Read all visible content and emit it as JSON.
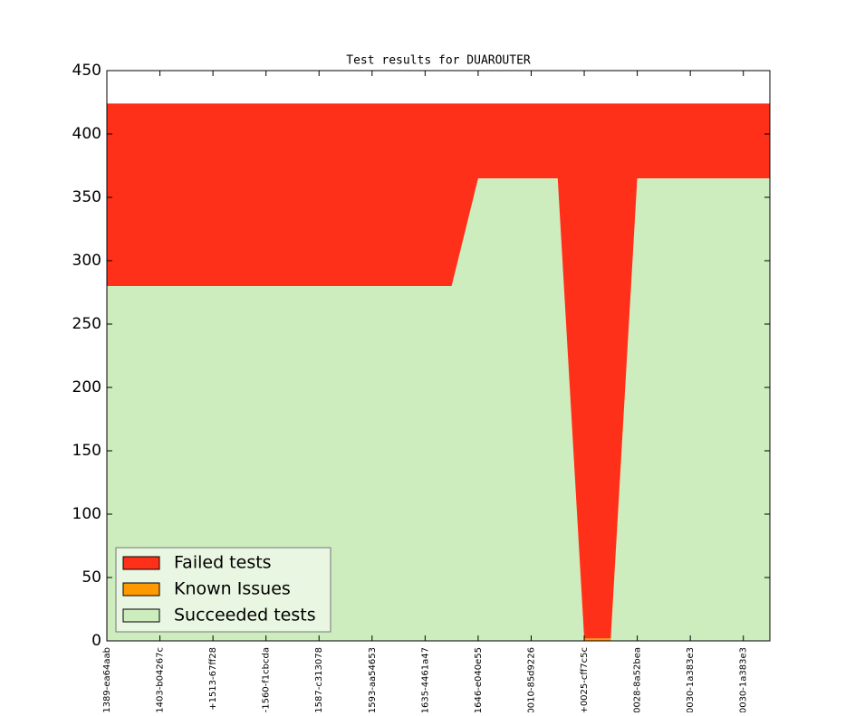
{
  "chart_data": {
    "type": "stacked_area",
    "title": "Test results for DUAROUTER",
    "categories": [
      "1389-ea64aab",
      null,
      "1403-b04267c",
      null,
      "+1513-67ff28",
      null,
      "-1560-f1cbcda",
      null,
      "1587-c313078",
      null,
      "1593-aa54653",
      null,
      "1635-4461a47",
      null,
      "1646-e040e55",
      null,
      "0010-85d9226",
      null,
      "+0025-cff7c5c",
      null,
      "0028-8a52bea",
      null,
      "0030-1a383e3",
      null,
      "0030-1a383e3",
      null
    ],
    "series": [
      {
        "name": "Failed tests",
        "color": "#ff3019",
        "values": [
          144,
          144,
          144,
          144,
          144,
          144,
          144,
          144,
          144,
          144,
          144,
          144,
          144,
          144,
          59,
          59,
          59,
          59,
          422,
          422,
          59,
          59,
          59,
          59,
          59,
          59
        ]
      },
      {
        "name": "Known Issues",
        "color": "#ff9900",
        "values": [
          0,
          0,
          0,
          0,
          0,
          0,
          0,
          0,
          0,
          0,
          0,
          0,
          0,
          0,
          0,
          0,
          0,
          0,
          2,
          2,
          0,
          0,
          0,
          0,
          0,
          0
        ]
      },
      {
        "name": "Succeeded tests",
        "color": "#cdedbf",
        "values": [
          280,
          280,
          280,
          280,
          280,
          280,
          280,
          280,
          280,
          280,
          280,
          280,
          280,
          280,
          365,
          365,
          365,
          365,
          0,
          0,
          365,
          365,
          365,
          365,
          365,
          365
        ]
      }
    ],
    "ylim": [
      0,
      450
    ],
    "yticks": [
      0,
      50,
      100,
      150,
      200,
      250,
      300,
      350,
      400,
      450
    ],
    "legend": "lower left"
  }
}
